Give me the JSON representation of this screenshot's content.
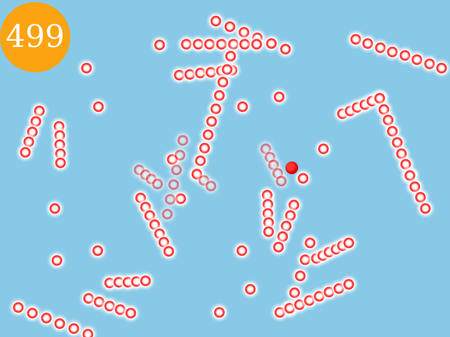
{
  "game": {
    "score": "499",
    "colors": {
      "background": "#88c9e7",
      "score_badge": "#fca311",
      "ball_ring": "#ff1a1a",
      "player": "#d40000"
    },
    "icons": {
      "ball": "red-ring-ball-icon",
      "player": "red-dot-player-icon"
    }
  }
}
